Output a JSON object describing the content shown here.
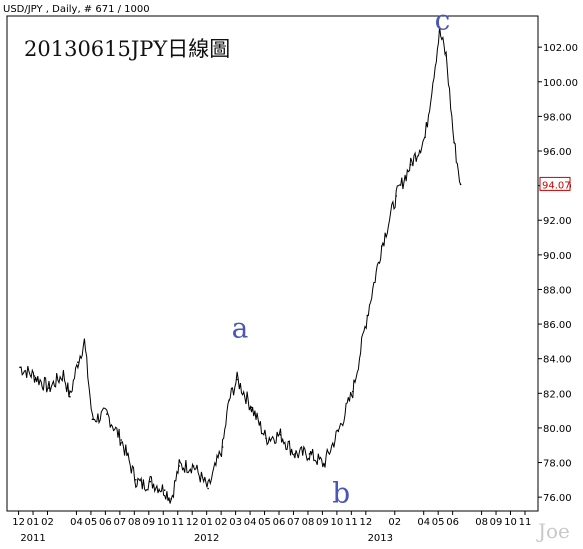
{
  "header": {
    "instrument": "USD/JPY , Daily, # 671 / 1000"
  },
  "watermark": "Joe",
  "chart_data": {
    "type": "line",
    "title": "20130615JPY日線圖",
    "ylim": [
      75.2,
      103.8
    ],
    "y_ticks": [
      "76.00",
      "78.00",
      "80.00",
      "82.00",
      "84.00",
      "86.00",
      "88.00",
      "90.00",
      "92.00",
      "94.00",
      "96.00",
      "98.00",
      "100.00",
      "102.00"
    ],
    "x_month_labels": [
      "12",
      "01",
      "02",
      "04",
      "05",
      "06",
      "07",
      "08",
      "09",
      "10",
      "11",
      "12",
      "01",
      "02",
      "03",
      "04",
      "05",
      "06",
      "07",
      "08",
      "09",
      "10",
      "11",
      "12",
      "02",
      "04",
      "05",
      "06",
      "08",
      "09",
      "10",
      "11"
    ],
    "x_year_labels": [
      "2011",
      "2012",
      "2013"
    ],
    "last_price": "94.07",
    "annotations": [
      {
        "text": "a",
        "x": "2012-03",
        "y": 84.3
      },
      {
        "text": "b",
        "x": "2012-10",
        "y": 77.2
      },
      {
        "text": "c",
        "x": "2013-05",
        "y": 102.9
      }
    ],
    "series": [
      {
        "x": [
          "2010-12",
          "2011-01",
          "2011-02",
          "2011-03",
          "2011-03",
          "2011-04",
          "2011-04",
          "2011-05",
          "2011-06",
          "2011-07",
          "2011-08",
          "2011-08",
          "2011-09",
          "2011-10",
          "2011-10",
          "2011-11",
          "2011-12",
          "2012-01",
          "2012-02",
          "2012-02",
          "2012-03",
          "2012-04",
          "2012-05",
          "2012-06",
          "2012-07",
          "2012-08",
          "2012-09",
          "2012-10",
          "2012-11",
          "2012-12",
          "2013-01",
          "2013-02",
          "2013-03",
          "2013-04",
          "2013-05",
          "2013-05",
          "2013-06",
          "2013-06"
        ],
        "values": [
          83.5,
          83.0,
          82.3,
          83.1,
          81.8,
          83.8,
          85.0,
          80.5,
          80.8,
          79.3,
          77.0,
          76.7,
          76.9,
          76.4,
          75.9,
          77.8,
          77.8,
          76.5,
          78.9,
          81.6,
          82.8,
          81.2,
          79.4,
          79.6,
          78.5,
          78.5,
          77.9,
          79.8,
          82.1,
          86.5,
          90.5,
          93.4,
          95.2,
          96.8,
          102.9,
          101.5,
          96.5,
          94.07
        ]
      }
    ]
  }
}
